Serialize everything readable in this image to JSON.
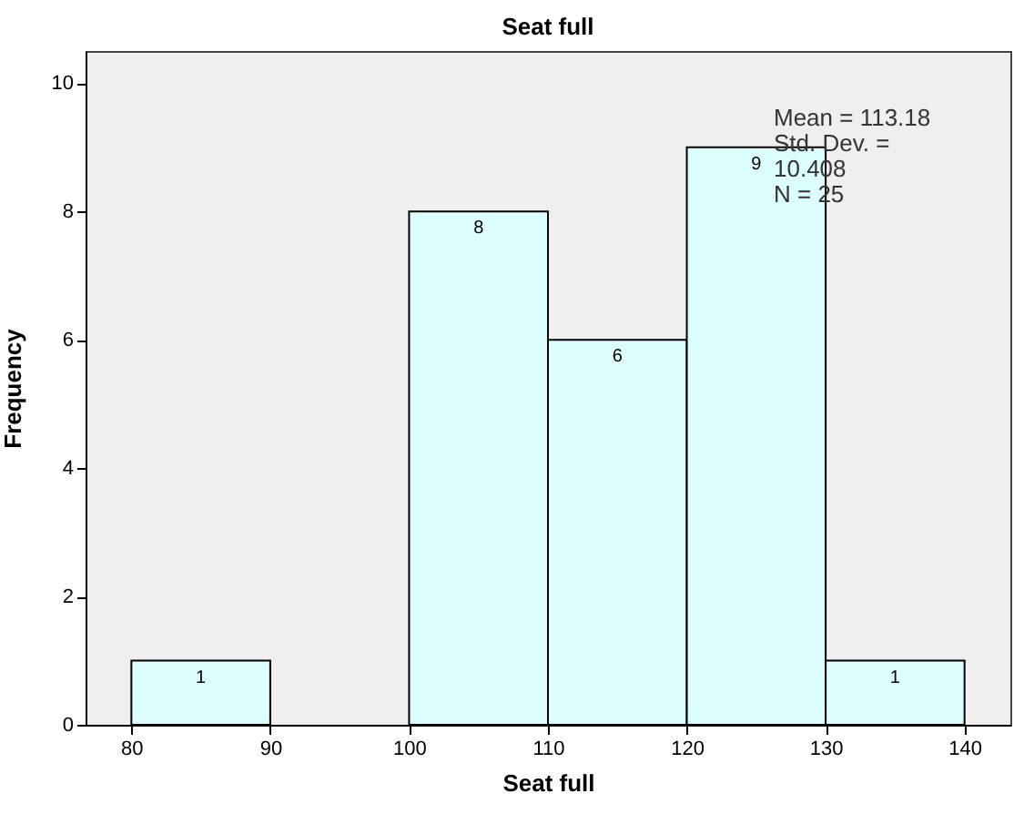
{
  "chart_data": {
    "type": "histogram",
    "title": "Seat full",
    "xlabel": "Seat full",
    "ylabel": "Frequency",
    "bins": [
      80,
      90,
      100,
      110,
      120,
      130,
      140
    ],
    "values": [
      1,
      0,
      8,
      6,
      9,
      1
    ],
    "value_labels": [
      "1",
      null,
      "8",
      "6",
      "9",
      "1"
    ],
    "color": "#ddfefe",
    "xlim": [
      76.7,
      143.3
    ],
    "xticks": [
      80,
      90,
      100,
      110,
      120,
      130,
      140
    ],
    "ylim": [
      0,
      10.5
    ],
    "yticks": [
      0,
      2,
      4,
      6,
      8,
      10
    ],
    "grid": false,
    "annotations": [
      "Mean = 113.18",
      "Std. Dev. =",
      "10.408",
      "N = 25"
    ]
  }
}
